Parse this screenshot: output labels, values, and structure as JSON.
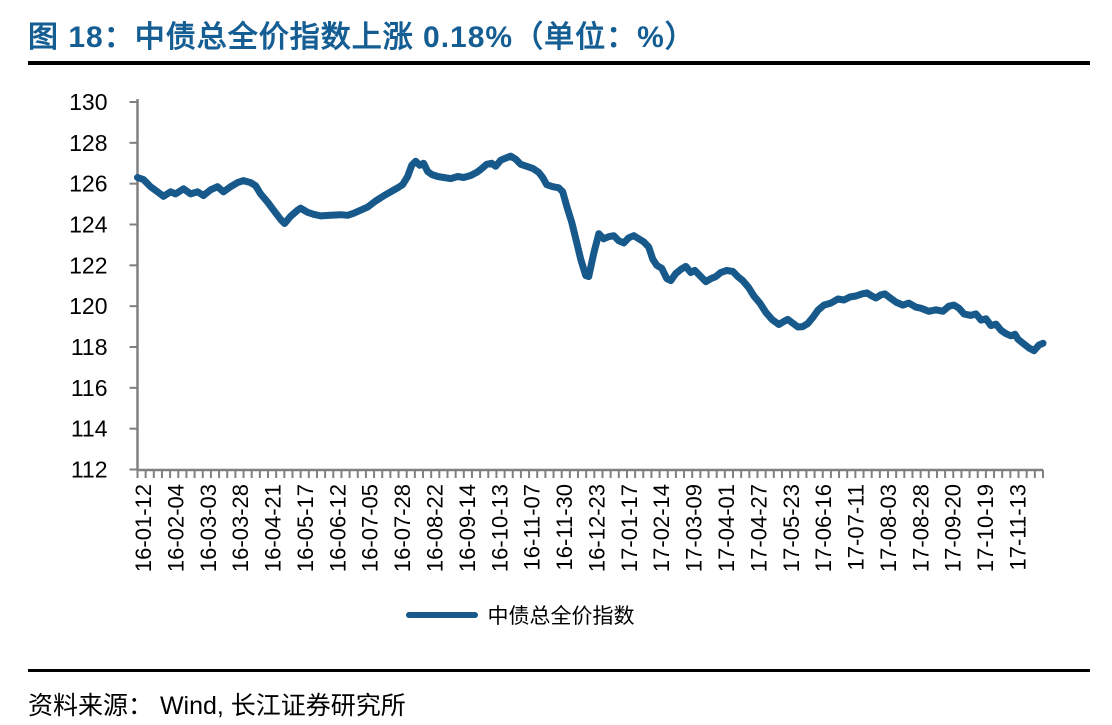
{
  "header": {
    "title": "图 18：中债总全价指数上涨 0.18%（单位：%）"
  },
  "footer": {
    "source": "资料来源： Wind, 长江证券研究所"
  },
  "colors": {
    "title": "#155E93",
    "line": "#17598A",
    "axis": "#808080",
    "text": "#000000"
  },
  "chart_data": {
    "type": "line",
    "title": "中债总全价指数上涨 0.18%（单位：%）",
    "ylabel": "",
    "xlabel": "",
    "ylim": [
      112,
      130
    ],
    "yticks": [
      112,
      114,
      116,
      118,
      120,
      122,
      124,
      126,
      128,
      130
    ],
    "grid": false,
    "legend_position": "bottom",
    "x_tick_labels": [
      "16-01-12",
      "16-02-04",
      "16-03-03",
      "16-03-28",
      "16-04-21",
      "16-05-17",
      "16-06-12",
      "16-07-05",
      "16-07-28",
      "16-08-22",
      "16-09-14",
      "16-10-13",
      "16-11-07",
      "16-11-30",
      "16-12-23",
      "17-01-17",
      "17-02-14",
      "17-03-09",
      "17-04-01",
      "17-04-27",
      "17-05-23",
      "17-06-16",
      "17-07-11",
      "17-08-03",
      "17-08-28",
      "17-09-20",
      "17-10-19",
      "17-11-13"
    ],
    "x_unit": "daily index dates from 16-01-12 to early Dec 2017, stored as fraction 0-1 of time axis",
    "series": [
      {
        "name": "中债总全价指数",
        "color": "#17598A",
        "points": [
          [
            0.0,
            126.3
          ],
          [
            0.0066,
            126.2
          ],
          [
            0.0144,
            125.85
          ],
          [
            0.0221,
            125.6
          ],
          [
            0.0287,
            125.38
          ],
          [
            0.0365,
            125.6
          ],
          [
            0.042,
            125.5
          ],
          [
            0.0508,
            125.75
          ],
          [
            0.0586,
            125.5
          ],
          [
            0.0663,
            125.6
          ],
          [
            0.0729,
            125.42
          ],
          [
            0.0807,
            125.7
          ],
          [
            0.0884,
            125.85
          ],
          [
            0.095,
            125.6
          ],
          [
            0.1028,
            125.85
          ],
          [
            0.1105,
            126.05
          ],
          [
            0.1171,
            126.15
          ],
          [
            0.1249,
            126.05
          ],
          [
            0.1304,
            125.9
          ],
          [
            0.1359,
            125.5
          ],
          [
            0.1436,
            125.1
          ],
          [
            0.1503,
            124.7
          ],
          [
            0.158,
            124.25
          ],
          [
            0.1624,
            124.05
          ],
          [
            0.1691,
            124.4
          ],
          [
            0.1768,
            124.7
          ],
          [
            0.1801,
            124.8
          ],
          [
            0.1878,
            124.6
          ],
          [
            0.1945,
            124.5
          ],
          [
            0.2022,
            124.42
          ],
          [
            0.2133,
            124.45
          ],
          [
            0.2243,
            124.48
          ],
          [
            0.232,
            124.45
          ],
          [
            0.2387,
            124.55
          ],
          [
            0.2464,
            124.7
          ],
          [
            0.2541,
            124.85
          ],
          [
            0.263,
            125.15
          ],
          [
            0.2718,
            125.4
          ],
          [
            0.2796,
            125.6
          ],
          [
            0.2873,
            125.8
          ],
          [
            0.2928,
            125.95
          ],
          [
            0.2983,
            126.35
          ],
          [
            0.3028,
            126.9
          ],
          [
            0.3072,
            127.1
          ],
          [
            0.3116,
            126.9
          ],
          [
            0.316,
            127.0
          ],
          [
            0.3204,
            126.6
          ],
          [
            0.3249,
            126.45
          ],
          [
            0.3315,
            126.35
          ],
          [
            0.3381,
            126.3
          ],
          [
            0.3459,
            126.25
          ],
          [
            0.3536,
            126.35
          ],
          [
            0.3602,
            126.3
          ],
          [
            0.368,
            126.4
          ],
          [
            0.3746,
            126.55
          ],
          [
            0.379,
            126.7
          ],
          [
            0.3856,
            126.95
          ],
          [
            0.3912,
            127.0
          ],
          [
            0.3956,
            126.85
          ],
          [
            0.4011,
            127.15
          ],
          [
            0.4066,
            127.25
          ],
          [
            0.4122,
            127.35
          ],
          [
            0.4177,
            127.2
          ],
          [
            0.4232,
            126.95
          ],
          [
            0.4298,
            126.85
          ],
          [
            0.4365,
            126.75
          ],
          [
            0.4431,
            126.55
          ],
          [
            0.4475,
            126.3
          ],
          [
            0.4519,
            125.95
          ],
          [
            0.4586,
            125.85
          ],
          [
            0.4652,
            125.8
          ],
          [
            0.4696,
            125.6
          ],
          [
            0.474,
            124.9
          ],
          [
            0.4796,
            124.1
          ],
          [
            0.4851,
            123.1
          ],
          [
            0.4895,
            122.3
          ],
          [
            0.495,
            121.5
          ],
          [
            0.4983,
            121.45
          ],
          [
            0.5039,
            122.6
          ],
          [
            0.5094,
            123.55
          ],
          [
            0.5149,
            123.3
          ],
          [
            0.5204,
            123.4
          ],
          [
            0.526,
            123.45
          ],
          [
            0.5315,
            123.2
          ],
          [
            0.537,
            123.1
          ],
          [
            0.5425,
            123.35
          ],
          [
            0.5481,
            123.45
          ],
          [
            0.5536,
            123.3
          ],
          [
            0.5591,
            123.15
          ],
          [
            0.5646,
            122.9
          ],
          [
            0.5691,
            122.3
          ],
          [
            0.5735,
            122.0
          ],
          [
            0.579,
            121.85
          ],
          [
            0.5845,
            121.35
          ],
          [
            0.589,
            121.25
          ],
          [
            0.5945,
            121.6
          ],
          [
            0.6,
            121.8
          ],
          [
            0.6055,
            121.95
          ],
          [
            0.611,
            121.65
          ],
          [
            0.6155,
            121.75
          ],
          [
            0.6221,
            121.45
          ],
          [
            0.6277,
            121.2
          ],
          [
            0.6332,
            121.35
          ],
          [
            0.6387,
            121.45
          ],
          [
            0.6442,
            121.65
          ],
          [
            0.6508,
            121.75
          ],
          [
            0.6575,
            121.7
          ],
          [
            0.663,
            121.45
          ],
          [
            0.6685,
            121.25
          ],
          [
            0.6751,
            120.9
          ],
          [
            0.6807,
            120.5
          ],
          [
            0.6873,
            120.15
          ],
          [
            0.6939,
            119.7
          ],
          [
            0.7006,
            119.35
          ],
          [
            0.7083,
            119.1
          ],
          [
            0.7138,
            119.25
          ],
          [
            0.7182,
            119.35
          ],
          [
            0.7227,
            119.2
          ],
          [
            0.7293,
            118.98
          ],
          [
            0.7348,
            119.0
          ],
          [
            0.7403,
            119.15
          ],
          [
            0.7459,
            119.45
          ],
          [
            0.7514,
            119.8
          ],
          [
            0.758,
            120.05
          ],
          [
            0.7657,
            120.15
          ],
          [
            0.7735,
            120.35
          ],
          [
            0.7801,
            120.3
          ],
          [
            0.7867,
            120.45
          ],
          [
            0.7934,
            120.5
          ],
          [
            0.8,
            120.6
          ],
          [
            0.8055,
            120.65
          ],
          [
            0.811,
            120.5
          ],
          [
            0.8155,
            120.4
          ],
          [
            0.821,
            120.55
          ],
          [
            0.8254,
            120.6
          ],
          [
            0.8298,
            120.45
          ],
          [
            0.8376,
            120.2
          ],
          [
            0.8453,
            120.05
          ],
          [
            0.8519,
            120.15
          ],
          [
            0.8597,
            119.95
          ],
          [
            0.8652,
            119.9
          ],
          [
            0.874,
            119.75
          ],
          [
            0.8818,
            119.82
          ],
          [
            0.8895,
            119.75
          ],
          [
            0.8961,
            120.0
          ],
          [
            0.9017,
            120.05
          ],
          [
            0.9072,
            119.9
          ],
          [
            0.9127,
            119.62
          ],
          [
            0.9204,
            119.55
          ],
          [
            0.926,
            119.62
          ],
          [
            0.9315,
            119.32
          ],
          [
            0.937,
            119.38
          ],
          [
            0.9425,
            119.05
          ],
          [
            0.9481,
            119.12
          ],
          [
            0.9536,
            118.82
          ],
          [
            0.9591,
            118.65
          ],
          [
            0.9646,
            118.55
          ],
          [
            0.9691,
            118.62
          ],
          [
            0.9724,
            118.38
          ],
          [
            0.9779,
            118.18
          ],
          [
            0.9845,
            117.95
          ],
          [
            0.9901,
            117.82
          ],
          [
            0.9956,
            118.1
          ],
          [
            1.0,
            118.18
          ]
        ]
      }
    ]
  }
}
